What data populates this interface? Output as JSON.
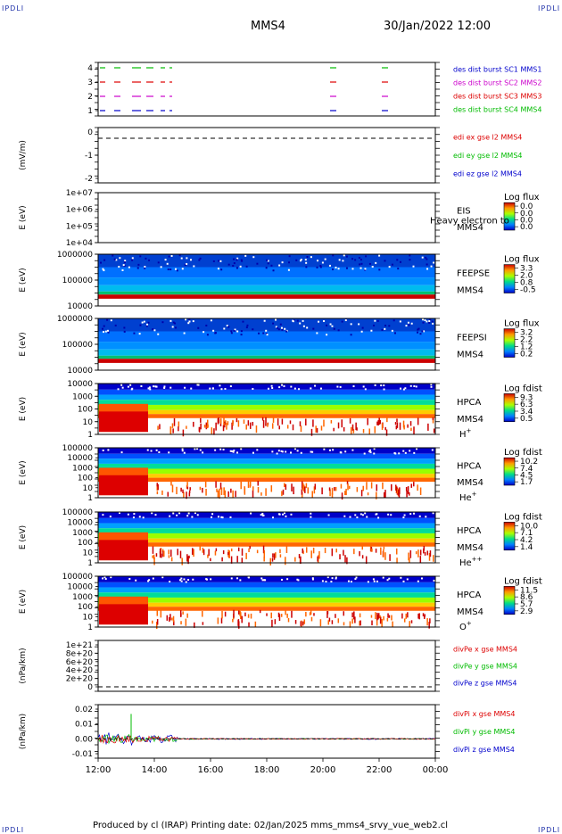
{
  "corner_label": "IPDLI",
  "header": {
    "spacecraft": "MMS4",
    "datetime": "30/Jan/2022 12:00"
  },
  "footer": {
    "text": "Produced by cl (IRAP)   Printing date: 02/Jan/2025   mms_mms4_srvy_vue_web2.cl"
  },
  "x_ticks": [
    "12:00",
    "14:00",
    "16:00",
    "18:00",
    "20:00",
    "22:00",
    "00:00"
  ],
  "chart_data": [
    {
      "type": "line",
      "panel": "des-dist-burst",
      "yticks": [
        "4",
        "3",
        "2",
        "1"
      ],
      "series": [
        {
          "name": "des dist burst SC1 MMS1",
          "color": "#0000cc"
        },
        {
          "name": "des dist burst SC2 MMS2",
          "color": "#cc00cc"
        },
        {
          "name": "des dist burst SC3 MMS3",
          "color": "#dd0000"
        },
        {
          "name": "des dist burst SC4 MMS4",
          "color": "#00bb00"
        }
      ]
    },
    {
      "type": "line",
      "panel": "edi-e",
      "ylabel": "(mV/m)",
      "yticks": [
        "0",
        "-1",
        "-2"
      ],
      "series": [
        {
          "name": "edi ex gse l2 MMS4",
          "color": "#dd0000"
        },
        {
          "name": "edi ey gse l2 MMS4",
          "color": "#00bb00"
        },
        {
          "name": "edi ez gse l2 MMS4",
          "color": "#0000cc"
        }
      ]
    },
    {
      "type": "heatmap",
      "panel": "eis",
      "ylabel": "E (eV)",
      "yticks": [
        "1e+07",
        "1e+06",
        "1e+05",
        "1e+04"
      ],
      "labels": [
        "EIS",
        "MMS4"
      ],
      "overlay": "Heavy electron to",
      "cbar_title": "Log flux",
      "cbar_ticks": [
        "0.0",
        "0.0",
        "0.0",
        "0.0"
      ]
    },
    {
      "type": "heatmap",
      "panel": "feepse",
      "ylabel": "E (eV)",
      "yticks": [
        "1000000",
        "100000",
        "10000"
      ],
      "labels": [
        "FEEPSE",
        "MMS4"
      ],
      "cbar_title": "Log flux",
      "cbar_ticks": [
        "3.3",
        "2.0",
        "0.8",
        "-0.5"
      ]
    },
    {
      "type": "heatmap",
      "panel": "feepsi",
      "ylabel": "E (eV)",
      "yticks": [
        "1000000",
        "100000",
        "10000"
      ],
      "labels": [
        "FEEPSI",
        "MMS4"
      ],
      "cbar_title": "Log flux",
      "cbar_ticks": [
        "3.2",
        "2.2",
        "1.2",
        "0.2"
      ]
    },
    {
      "type": "heatmap",
      "panel": "hpca-h",
      "ylabel": "E (eV)",
      "yticks": [
        "10000",
        "1000",
        "100",
        "10",
        "1"
      ],
      "labels": [
        "HPCA",
        "MMS4"
      ],
      "species": "H",
      "species_sup": "+",
      "cbar_title": "Log fdist",
      "cbar_ticks": [
        "9.3",
        "6.3",
        "3.4",
        "0.5"
      ]
    },
    {
      "type": "heatmap",
      "panel": "hpca-he",
      "ylabel": "E (eV)",
      "yticks": [
        "100000",
        "10000",
        "1000",
        "100",
        "10",
        "1"
      ],
      "labels": [
        "HPCA",
        "MMS4"
      ],
      "species": "He",
      "species_sup": "+",
      "cbar_title": "Log fdist",
      "cbar_ticks": [
        "10.2",
        "7.4",
        "4.5",
        "1.7"
      ]
    },
    {
      "type": "heatmap",
      "panel": "hpca-hepp",
      "ylabel": "E (eV)",
      "yticks": [
        "100000",
        "10000",
        "1000",
        "100",
        "10",
        "1"
      ],
      "labels": [
        "HPCA",
        "MMS4"
      ],
      "species": "He",
      "species_sup": "++",
      "cbar_title": "Log fdist",
      "cbar_ticks": [
        "10.0",
        "7.1",
        "4.2",
        "1.4"
      ]
    },
    {
      "type": "heatmap",
      "panel": "hpca-o",
      "ylabel": "E (eV)",
      "yticks": [
        "100000",
        "10000",
        "1000",
        "100",
        "10",
        "1"
      ],
      "labels": [
        "HPCA",
        "MMS4"
      ],
      "species": "O",
      "species_sup": "+",
      "cbar_title": "Log fdist",
      "cbar_ticks": [
        "11.5",
        "8.6",
        "5.7",
        "2.9"
      ]
    },
    {
      "type": "line",
      "panel": "divpe",
      "ylabel": "(nPa/km)",
      "yticks": [
        "1e+21",
        "8e+20",
        "6e+20",
        "4e+20",
        "2e+20",
        "0"
      ],
      "series": [
        {
          "name": "divPe x gse MMS4",
          "color": "#dd0000"
        },
        {
          "name": "divPe y gse MMS4",
          "color": "#00bb00"
        },
        {
          "name": "divPe z gse MMS4",
          "color": "#0000cc"
        }
      ]
    },
    {
      "type": "line",
      "panel": "divpi",
      "ylabel": "(nPa/km)",
      "yticks": [
        "0.02",
        "0.01",
        "0.00",
        "-0.01"
      ],
      "series": [
        {
          "name": "divPi x gse MMS4",
          "color": "#dd0000"
        },
        {
          "name": "divPi y gse MMS4",
          "color": "#00bb00"
        },
        {
          "name": "divPi z gse MMS4",
          "color": "#0000cc"
        }
      ]
    }
  ]
}
